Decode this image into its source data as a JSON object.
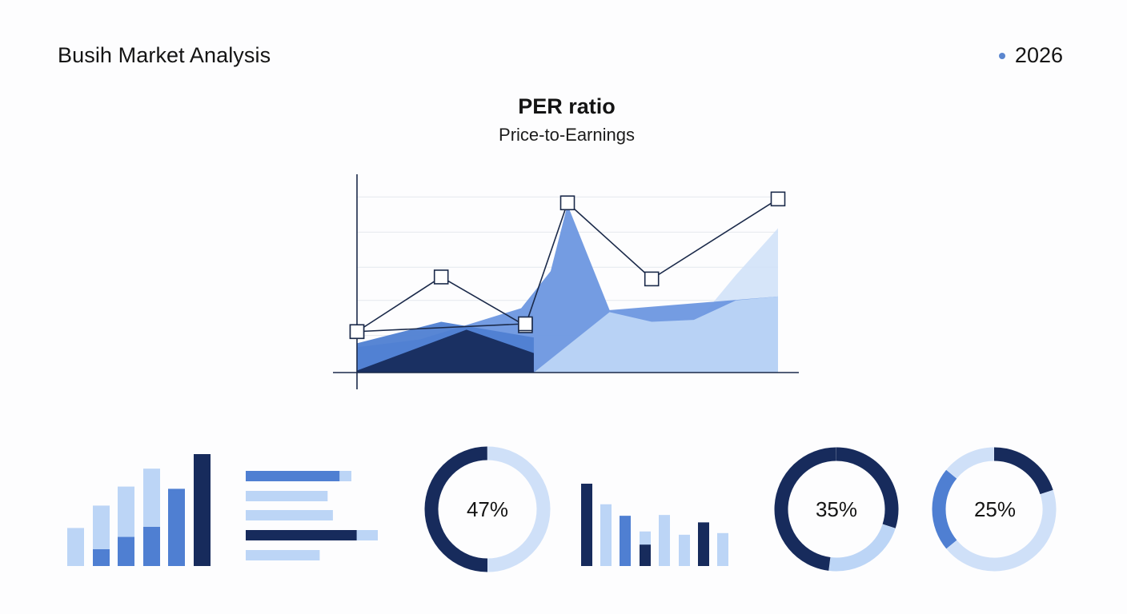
{
  "header": {
    "title": "Busih Market Analysis",
    "year": "2026"
  },
  "colors": {
    "dark": "#172b5c",
    "mid": "#4f7fd2",
    "medium": "#6d97e0",
    "light": "#bcd5f6",
    "pale": "#cfe0f8",
    "grid": "#e4e8ee"
  },
  "chart_data": [
    {
      "type": "line",
      "title": "PER ratio",
      "subtitle": "Price-to-Earnings",
      "xlabel": "",
      "ylabel": "",
      "grid": true,
      "xlim": [
        0,
        10
      ],
      "ylim": [
        0,
        10
      ],
      "series": [
        {
          "style": "line",
          "x": [
            0,
            2,
            4,
            5,
            7,
            10
          ],
          "y": [
            2.1,
            4.9,
            2.4,
            8.7,
            4.8,
            8.9
          ]
        },
        {
          "style": "line",
          "x": [
            0,
            4
          ],
          "y": [
            2.1,
            2.5
          ]
        },
        {
          "style": "area",
          "x": [
            0,
            1.5,
            3.9,
            4.6,
            5,
            6,
            10
          ],
          "y": [
            1.3,
            1.7,
            3.3,
            5.2,
            8.6,
            3.2,
            3.9
          ]
        },
        {
          "style": "area",
          "x": [
            0,
            2,
            4.2
          ],
          "y": [
            1.5,
            2.6,
            1.8
          ]
        },
        {
          "style": "area",
          "x": [
            0,
            2.6,
            4.2
          ],
          "y": [
            0.1,
            2.2,
            1.0
          ]
        },
        {
          "style": "area",
          "x": [
            4.2,
            6,
            7,
            8,
            9,
            10
          ],
          "y": [
            0,
            3.1,
            2.6,
            2.7,
            3.7,
            3.9
          ]
        },
        {
          "style": "area",
          "x": [
            4.2,
            6,
            7,
            8,
            9,
            10
          ],
          "y": [
            0,
            3.1,
            2.6,
            2.4,
            5.0,
            7.4
          ]
        }
      ]
    },
    {
      "type": "bar",
      "orientation": "vertical",
      "stacked": true,
      "values": [
        3.4,
        5.4,
        7.1,
        8.7,
        6.9,
        10
      ],
      "highlight": [
        0,
        1.5,
        2.6,
        3.5,
        6.9,
        10
      ]
    },
    {
      "type": "bar",
      "orientation": "horizontal",
      "values": [
        8.0,
        6.2,
        6.6,
        10,
        5.6
      ],
      "highlight": [
        7.1,
        0,
        0,
        8.4,
        0
      ]
    },
    {
      "type": "pie",
      "style": "donut",
      "label": "47%",
      "segments": [
        50,
        50
      ]
    },
    {
      "type": "bar",
      "orientation": "vertical",
      "values": [
        10,
        7.5,
        6.1,
        4.2,
        6.2,
        3.8,
        5.3,
        4.0
      ],
      "highlight": [
        10,
        0,
        6.1,
        2.6,
        0,
        0,
        5.3,
        0
      ]
    },
    {
      "type": "pie",
      "style": "donut",
      "label": "35%",
      "segments": [
        30,
        22,
        48
      ]
    },
    {
      "type": "pie",
      "style": "donut",
      "label": "25%",
      "segments": [
        20,
        44,
        22,
        14
      ]
    }
  ]
}
